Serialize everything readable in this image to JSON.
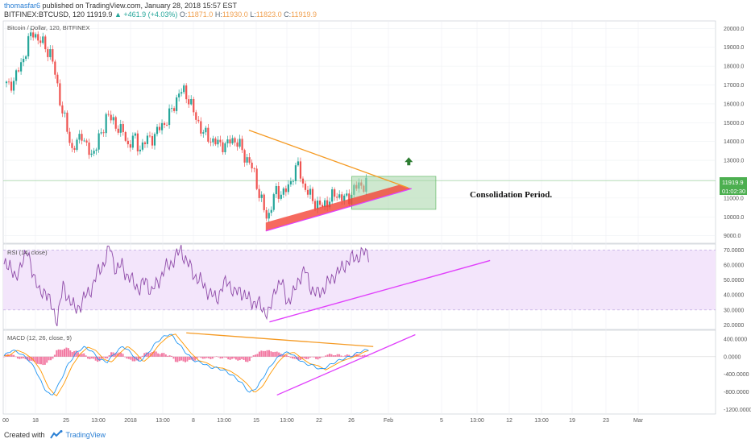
{
  "header": {
    "author": "thomasfar6",
    "published": "published on TradingView.com, January 28, 2018 15:57 EST",
    "symbol": "BITFINEX:BTCUSD, 120",
    "last": "11919.9",
    "change": "▲ +461.9 (+4.03%)",
    "o_label": "O:",
    "o": "11871.0",
    "h_label": "H:",
    "h": "11930.0",
    "l_label": "L:",
    "l": "11823.0",
    "c_label": "C:",
    "c": "11919.9"
  },
  "panes": {
    "price_title": "Bitcoin / Dollar, 120, BITFINEX",
    "rsi_title": "RSI (14, close)",
    "macd_title": "MACD (12, 26, close, 9)",
    "annotation": "Consolidation Period.",
    "price_tag": "11919.9",
    "time_tag": "01:02:30"
  },
  "footer": {
    "created_with": "Created with",
    "brand": "TradingView"
  },
  "colors": {
    "up": "#26a69a",
    "down": "#ef5350",
    "orange": "#f59a23",
    "magenta": "#e040fb",
    "rsi_line": "#8e4aa8",
    "rsi_band": "#f3e5fb",
    "zone": "#a5d6a7",
    "red_band": "#f44336",
    "macd_line": "#2196f3",
    "signal_line": "#ff9800",
    "hist": "#f06292"
  },
  "chart_data": [
    {
      "type": "candlestick",
      "title": "Bitcoin / Dollar, 120, BITFINEX",
      "x_ticks": [
        "00",
        "18",
        "25",
        "13:00",
        "2018",
        "13:00",
        "8",
        "13:00",
        "15",
        "13:00",
        "22",
        "26",
        "Feb",
        "5",
        "13:00",
        "12",
        "13:00",
        "19",
        "23",
        "Mar"
      ],
      "y_ticks": [
        20000,
        19000,
        18000,
        17000,
        16000,
        15000,
        14000,
        13000,
        12000,
        11000,
        10000,
        9000
      ],
      "ylim": [
        8600,
        20400
      ],
      "close_path": [
        {
          "t": 0,
          "v": 17100
        },
        {
          "t": 0.5,
          "v": 16900
        },
        {
          "t": 1.2,
          "v": 17400
        },
        {
          "t": 2,
          "v": 18300
        },
        {
          "t": 2.6,
          "v": 19300
        },
        {
          "t": 3.2,
          "v": 19900
        },
        {
          "t": 3.6,
          "v": 19400
        },
        {
          "t": 4.2,
          "v": 19200
        },
        {
          "t": 5,
          "v": 18600
        },
        {
          "t": 5.6,
          "v": 17300
        },
        {
          "t": 6.2,
          "v": 15600
        },
        {
          "t": 6.8,
          "v": 14600
        },
        {
          "t": 7.3,
          "v": 13500
        },
        {
          "t": 7.8,
          "v": 13900
        },
        {
          "t": 8.3,
          "v": 14500
        },
        {
          "t": 8.8,
          "v": 13700
        },
        {
          "t": 9.3,
          "v": 13200
        },
        {
          "t": 9.8,
          "v": 13800
        },
        {
          "t": 10.5,
          "v": 14400
        },
        {
          "t": 11,
          "v": 15600
        },
        {
          "t": 11.6,
          "v": 15000
        },
        {
          "t": 12.2,
          "v": 14800
        },
        {
          "t": 12.8,
          "v": 14400
        },
        {
          "t": 13.3,
          "v": 13700
        },
        {
          "t": 13.8,
          "v": 14300
        },
        {
          "t": 14.3,
          "v": 13700
        },
        {
          "t": 14.8,
          "v": 13800
        },
        {
          "t": 15.3,
          "v": 14100
        },
        {
          "t": 15.8,
          "v": 14200
        },
        {
          "t": 16.3,
          "v": 14400
        },
        {
          "t": 16.8,
          "v": 14900
        },
        {
          "t": 17.3,
          "v": 15000
        },
        {
          "t": 17.8,
          "v": 15500
        },
        {
          "t": 18.3,
          "v": 16100
        },
        {
          "t": 18.8,
          "v": 16600
        },
        {
          "t": 19.3,
          "v": 16700
        },
        {
          "t": 19.8,
          "v": 16200
        },
        {
          "t": 20.3,
          "v": 15500
        },
        {
          "t": 20.8,
          "v": 15000
        },
        {
          "t": 21.3,
          "v": 14400
        },
        {
          "t": 21.8,
          "v": 14300
        },
        {
          "t": 22.3,
          "v": 14000
        },
        {
          "t": 22.8,
          "v": 13900
        },
        {
          "t": 23.3,
          "v": 13900
        },
        {
          "t": 23.8,
          "v": 13700
        },
        {
          "t": 24.3,
          "v": 14200
        },
        {
          "t": 24.8,
          "v": 14000
        },
        {
          "t": 25.3,
          "v": 13700
        },
        {
          "t": 25.8,
          "v": 13200
        },
        {
          "t": 26.3,
          "v": 12800
        },
        {
          "t": 26.8,
          "v": 12300
        },
        {
          "t": 27.3,
          "v": 11200
        },
        {
          "t": 27.8,
          "v": 10400
        },
        {
          "t": 28.2,
          "v": 9900
        },
        {
          "t": 28.6,
          "v": 10600
        },
        {
          "t": 29,
          "v": 11300
        },
        {
          "t": 29.5,
          "v": 11300
        },
        {
          "t": 30,
          "v": 11300
        },
        {
          "t": 30.5,
          "v": 11600
        },
        {
          "t": 31,
          "v": 12400
        },
        {
          "t": 31.5,
          "v": 12700
        },
        {
          "t": 32,
          "v": 11700
        },
        {
          "t": 32.5,
          "v": 11300
        },
        {
          "t": 33,
          "v": 10900
        },
        {
          "t": 33.5,
          "v": 10700
        },
        {
          "t": 34,
          "v": 10500
        },
        {
          "t": 34.5,
          "v": 10800
        },
        {
          "t": 35,
          "v": 11000
        },
        {
          "t": 35.5,
          "v": 11200
        },
        {
          "t": 36,
          "v": 11100
        },
        {
          "t": 36.5,
          "v": 10900
        },
        {
          "t": 37,
          "v": 11100
        },
        {
          "t": 37.5,
          "v": 11500
        },
        {
          "t": 38,
          "v": 11700
        },
        {
          "t": 38.5,
          "v": 11700
        },
        {
          "t": 39,
          "v": 11900
        }
      ],
      "annotations": {
        "resistance_line": [
          {
            "t": 26.2,
            "v": 14600
          },
          {
            "t": 43.2,
            "v": 11550
          }
        ],
        "support_line": [
          {
            "t": 28.0,
            "v": 9250
          },
          {
            "t": 43.6,
            "v": 11500
          }
        ],
        "red_band_top": [
          {
            "t": 28.0,
            "v": 9700
          },
          {
            "t": 42.3,
            "v": 11700
          }
        ],
        "consolidation_zone": {
          "t0": 37.2,
          "t1": 46.2,
          "v0": 10400,
          "v1": 12150
        },
        "arrow_up": {
          "t": 43.3,
          "v": 12950
        },
        "last_price": 11919.9
      }
    },
    {
      "type": "line",
      "title": "RSI (14, close)",
      "y_ticks": [
        70,
        60,
        50,
        40,
        30,
        20
      ],
      "ylim": [
        17,
        74
      ],
      "band": [
        30,
        70
      ],
      "values": [
        58,
        62,
        48,
        64,
        67,
        55,
        40,
        44,
        32,
        24,
        45,
        38,
        30,
        34,
        40,
        46,
        56,
        62,
        72,
        56,
        60,
        52,
        48,
        44,
        50,
        42,
        48,
        56,
        60,
        65,
        70,
        62,
        55,
        50,
        46,
        40,
        38,
        45,
        50,
        40,
        44,
        38,
        36,
        34,
        30,
        28,
        46,
        48,
        36,
        40,
        52,
        56,
        45,
        40,
        44,
        48,
        54,
        56,
        62,
        64,
        66,
        68
      ],
      "trend_line": [
        {
          "t": 28.4,
          "v": 22
        },
        {
          "t": 52.0,
          "v": 63
        }
      ]
    },
    {
      "type": "line",
      "title": "MACD (12, 26, close, 9)",
      "y_ticks": [
        400,
        0,
        -400,
        -800,
        -1200
      ],
      "ylim": [
        -1300,
        600
      ],
      "macd": [
        20,
        150,
        80,
        -50,
        -300,
        -700,
        -900,
        -600,
        -200,
        60,
        220,
        140,
        -60,
        -120,
        80,
        240,
        90,
        -120,
        40,
        280,
        440,
        520,
        300,
        80,
        -90,
        -140,
        -240,
        -260,
        -330,
        -450,
        -600,
        -820,
        -680,
        -380,
        -120,
        60,
        100,
        -40,
        -160,
        -200,
        -300,
        -200,
        -100,
        -40,
        30,
        120,
        160
      ],
      "resistance_line": [
        {
          "t": 19.5,
          "v": 540
        },
        {
          "t": 39.5,
          "v": 230
        }
      ],
      "support_line": [
        {
          "t": 29.2,
          "v": -870
        },
        {
          "t": 44.0,
          "v": 500
        }
      ]
    }
  ]
}
